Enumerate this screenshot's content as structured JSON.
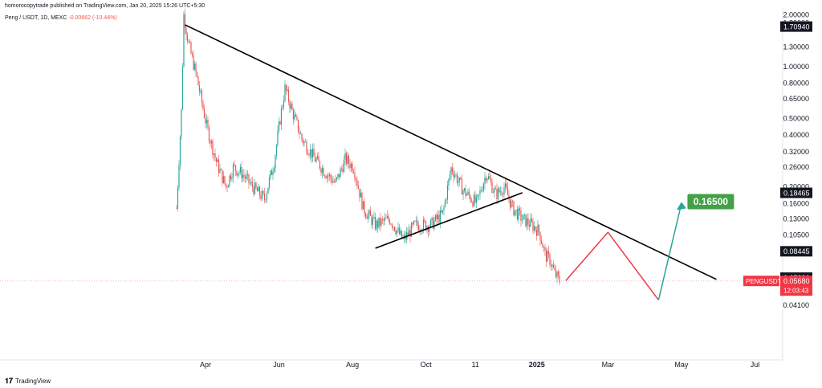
{
  "header": {
    "published": "homorocopytrade published on TradingView.com, Jan 20, 2025 15:26 UTC+5:30",
    "symbol": "Peng / USDT, 1D, MEXC",
    "change": "-0.00662 (-10.44%)"
  },
  "footer": {
    "brand": "TradingView",
    "logo_icon": "tradingview-logo-icon"
  },
  "colors": {
    "up": "#26a69a",
    "down": "#ef5350",
    "trend": "#000000",
    "projection_up": "#26a69a",
    "projection_down": "#f23645",
    "target_bg": "#43a047",
    "price_bg": "#f23645",
    "tag_bg": "#131722"
  },
  "chart_data": {
    "type": "candlestick",
    "y_scale": "log",
    "x_labels": [
      "Apr",
      "Jun",
      "Aug",
      "Oct",
      "11",
      "2025",
      "Mar",
      "May",
      "Jul"
    ],
    "y_ticks": [
      "2.00000",
      "1.80000",
      "1.30000",
      "1.00000",
      "0.80000",
      "0.65000",
      "0.50000",
      "0.40000",
      "0.32000",
      "0.26000",
      "0.20000",
      "0.16000",
      "0.13000",
      "0.10500",
      "0.04100"
    ],
    "price_tags": [
      {
        "label": "1.70940",
        "value": 1.7094
      },
      {
        "label": "0.18465",
        "value": 0.18465
      },
      {
        "label": "0.08445",
        "value": 0.08445
      },
      {
        "label": "0.05936",
        "value": 0.05936
      }
    ],
    "current": {
      "symbol": "PENGUSDT",
      "price": "0.05680",
      "countdown": "12:03:43"
    },
    "target": {
      "label": "0.16500",
      "value": 0.165
    },
    "trendlines": [
      {
        "name": "descending-resistance",
        "from": {
          "date": "2024-03-15",
          "price": 1.75
        },
        "to": {
          "date": "2025-05-30",
          "price": 0.058
        }
      },
      {
        "name": "ascending-support",
        "from": {
          "date": "2024-08-20",
          "price": 0.088
        },
        "to": {
          "date": "2024-12-20",
          "price": 0.185
        }
      }
    ],
    "projection": [
      {
        "date": "2025-01-25",
        "price": 0.057
      },
      {
        "date": "2025-03-01",
        "price": 0.109
      },
      {
        "date": "2025-04-12",
        "price": 0.044
      },
      {
        "date": "2025-05-01",
        "price": 0.16
      }
    ],
    "price_path": [
      {
        "date": "2024-03-08",
        "price": 0.15
      },
      {
        "date": "2024-03-12",
        "price": 0.55
      },
      {
        "date": "2024-03-14",
        "price": 2.0
      },
      {
        "date": "2024-03-18",
        "price": 1.35
      },
      {
        "date": "2024-03-25",
        "price": 0.85
      },
      {
        "date": "2024-04-02",
        "price": 0.45
      },
      {
        "date": "2024-04-10",
        "price": 0.28
      },
      {
        "date": "2024-04-18",
        "price": 0.2
      },
      {
        "date": "2024-04-24",
        "price": 0.26
      },
      {
        "date": "2024-05-01",
        "price": 0.24
      },
      {
        "date": "2024-05-10",
        "price": 0.2
      },
      {
        "date": "2024-05-20",
        "price": 0.17
      },
      {
        "date": "2024-05-28",
        "price": 0.28
      },
      {
        "date": "2024-06-02",
        "price": 0.5
      },
      {
        "date": "2024-06-06",
        "price": 0.75
      },
      {
        "date": "2024-06-12",
        "price": 0.55
      },
      {
        "date": "2024-06-20",
        "price": 0.38
      },
      {
        "date": "2024-07-01",
        "price": 0.29
      },
      {
        "date": "2024-07-10",
        "price": 0.24
      },
      {
        "date": "2024-07-18",
        "price": 0.21
      },
      {
        "date": "2024-07-26",
        "price": 0.29
      },
      {
        "date": "2024-08-02",
        "price": 0.26
      },
      {
        "date": "2024-08-10",
        "price": 0.15
      },
      {
        "date": "2024-08-20",
        "price": 0.12
      },
      {
        "date": "2024-09-01",
        "price": 0.13
      },
      {
        "date": "2024-09-12",
        "price": 0.098
      },
      {
        "date": "2024-09-22",
        "price": 0.12
      },
      {
        "date": "2024-10-05",
        "price": 0.12
      },
      {
        "date": "2024-10-15",
        "price": 0.14
      },
      {
        "date": "2024-10-22",
        "price": 0.26
      },
      {
        "date": "2024-11-01",
        "price": 0.19
      },
      {
        "date": "2024-11-12",
        "price": 0.16
      },
      {
        "date": "2024-11-20",
        "price": 0.24
      },
      {
        "date": "2024-11-28",
        "price": 0.18
      },
      {
        "date": "2024-12-05",
        "price": 0.2
      },
      {
        "date": "2024-12-12",
        "price": 0.15
      },
      {
        "date": "2024-12-20",
        "price": 0.13
      },
      {
        "date": "2024-12-28",
        "price": 0.12
      },
      {
        "date": "2025-01-03",
        "price": 0.11
      },
      {
        "date": "2025-01-08",
        "price": 0.08
      },
      {
        "date": "2025-01-12",
        "price": 0.075
      },
      {
        "date": "2025-01-16",
        "price": 0.062
      },
      {
        "date": "2025-01-20",
        "price": 0.0568
      }
    ]
  }
}
